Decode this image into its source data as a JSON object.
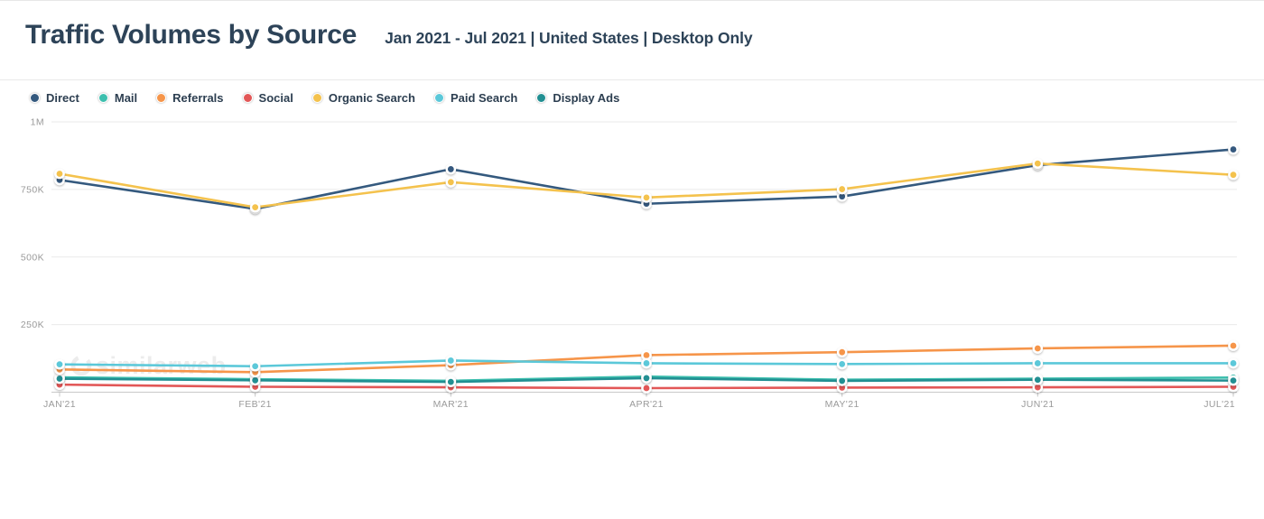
{
  "header": {
    "title": "Traffic Volumes by Source",
    "subtitle": "Jan 2021 - Jul 2021 | United States | Desktop Only"
  },
  "watermark": {
    "text": "similarweb",
    "icon": "similarweb-swirl-icon"
  },
  "chart_data": {
    "type": "line",
    "title": "Traffic Volumes by Source",
    "subtitle": "Jan 2021 - Jul 2021 | United States | Desktop Only",
    "categories": [
      "JAN'21",
      "FEB'21",
      "MAR'21",
      "APR'21",
      "MAY'21",
      "JUN'21",
      "JUL'21"
    ],
    "xlabel": "",
    "ylabel": "",
    "ylim": [
      0,
      1045000
    ],
    "y_ticks": [
      "250K",
      "500K",
      "750K",
      "1M"
    ],
    "y_tick_values": [
      250000,
      500000,
      750000,
      1000000
    ],
    "grid": true,
    "legend_position": "top",
    "series": [
      {
        "name": "Direct",
        "color": "#34597e",
        "values": [
          785000,
          678000,
          825000,
          697000,
          724000,
          840000,
          898000
        ]
      },
      {
        "name": "Mail",
        "color": "#3dbfae",
        "values": [
          55000,
          48000,
          42000,
          58000,
          46000,
          50000,
          54000
        ]
      },
      {
        "name": "Referrals",
        "color": "#f6954a",
        "values": [
          84000,
          74000,
          100000,
          137000,
          148000,
          162000,
          172000
        ]
      },
      {
        "name": "Social",
        "color": "#e25757",
        "values": [
          28000,
          20000,
          18000,
          15000,
          17000,
          18000,
          20000
        ]
      },
      {
        "name": "Organic Search",
        "color": "#f4c24d",
        "values": [
          808000,
          684000,
          777000,
          720000,
          751000,
          846000,
          804000
        ]
      },
      {
        "name": "Paid Search",
        "color": "#5bc8d9",
        "values": [
          103000,
          96000,
          117000,
          107000,
          104000,
          107000,
          107000
        ]
      },
      {
        "name": "Display Ads",
        "color": "#218f92",
        "values": [
          50000,
          44000,
          38000,
          52000,
          42000,
          46000,
          43000
        ]
      }
    ]
  }
}
